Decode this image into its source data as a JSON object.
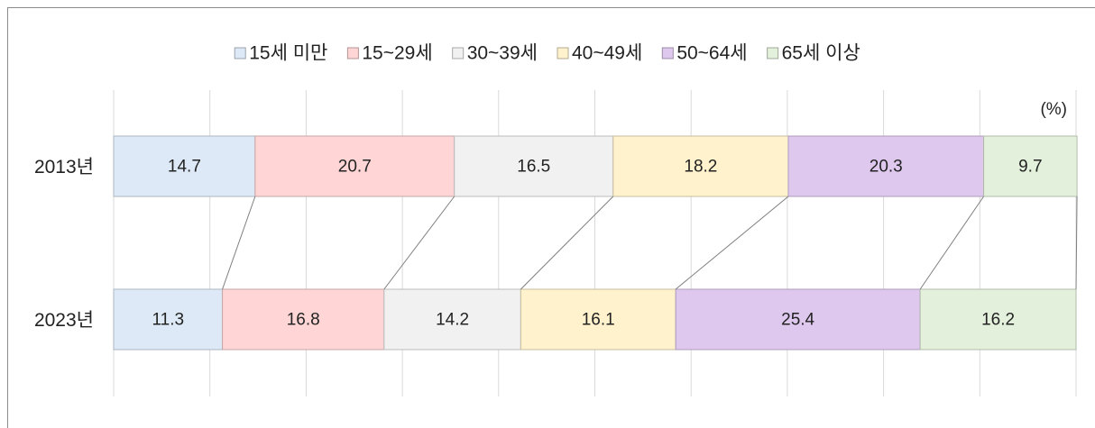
{
  "chart_data": {
    "type": "stacked_bar_horizontal",
    "unit": "(%)",
    "categories": [
      "2013년",
      "2023년"
    ],
    "series": [
      {
        "name": "15세 미만",
        "color": "#dde9f6",
        "values": [
          14.7,
          11.3
        ]
      },
      {
        "name": "15~29세",
        "color": "#ffd5d5",
        "values": [
          20.7,
          16.8
        ]
      },
      {
        "name": "30~39세",
        "color": "#f1f1f1",
        "values": [
          16.5,
          14.2
        ]
      },
      {
        "name": "40~49세",
        "color": "#fff2cc",
        "values": [
          18.2,
          16.1
        ]
      },
      {
        "name": "50~64세",
        "color": "#dec8ee",
        "values": [
          20.3,
          25.4
        ]
      },
      {
        "name": "65세 이상",
        "color": "#e3f0db",
        "values": [
          9.7,
          16.2
        ]
      }
    ],
    "xlim": [
      0,
      100
    ],
    "xticks": [
      0,
      10,
      20,
      30,
      40,
      50,
      60,
      70,
      80,
      90,
      100
    ],
    "grid": true,
    "legend": "top"
  }
}
